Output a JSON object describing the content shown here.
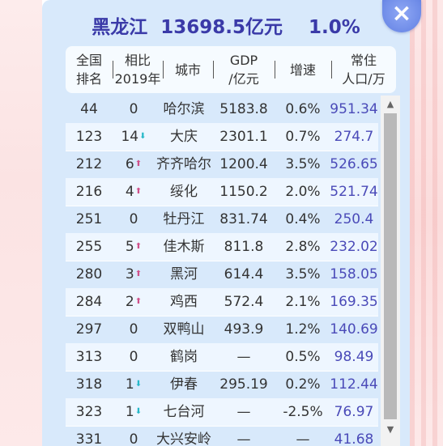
{
  "colors": {
    "title": "#3a3aa8",
    "panel": "#d8e9fb",
    "population": "#4a4ab8",
    "arrow_up": "#d0508a",
    "arrow_down": "#26b8c8",
    "close_button": "#7090e8"
  },
  "title": "黑龙江  13698.5亿元    1.0%",
  "close_icon": "×",
  "header": {
    "rank": [
      "全国",
      "排名"
    ],
    "comparison": [
      "相比",
      "2019年"
    ],
    "city": "城市",
    "gdp": [
      "GDP",
      "/亿元"
    ],
    "growth": "增速",
    "population": [
      "常住",
      "人口/万"
    ]
  },
  "rows": [
    {
      "rank": "44",
      "change": "0",
      "arrow": "",
      "city": "哈尔滨",
      "gdp": "5183.8",
      "growth": "0.6%",
      "population": "951.34"
    },
    {
      "rank": "123",
      "change": "14",
      "arrow": "down",
      "city": "大庆",
      "gdp": "2301.1",
      "growth": "0.7%",
      "population": "274.7"
    },
    {
      "rank": "212",
      "change": "6",
      "arrow": "up",
      "city": "齐齐哈尔",
      "gdp": "1200.4",
      "growth": "3.5%",
      "population": "526.65"
    },
    {
      "rank": "216",
      "change": "4",
      "arrow": "up",
      "city": "绥化",
      "gdp": "1150.2",
      "growth": "2.0%",
      "population": "521.74"
    },
    {
      "rank": "251",
      "change": "0",
      "arrow": "",
      "city": "牡丹江",
      "gdp": "831.74",
      "growth": "0.4%",
      "population": "250.4"
    },
    {
      "rank": "255",
      "change": "5",
      "arrow": "up",
      "city": "佳木斯",
      "gdp": "811.8",
      "growth": "2.8%",
      "population": "232.02"
    },
    {
      "rank": "280",
      "change": "3",
      "arrow": "up",
      "city": "黑河",
      "gdp": "614.4",
      "growth": "3.5%",
      "population": "158.05"
    },
    {
      "rank": "284",
      "change": "2",
      "arrow": "up",
      "city": "鸡西",
      "gdp": "572.4",
      "growth": "2.1%",
      "population": "169.35"
    },
    {
      "rank": "297",
      "change": "0",
      "arrow": "",
      "city": "双鸭山",
      "gdp": "493.9",
      "growth": "1.2%",
      "population": "140.69"
    },
    {
      "rank": "313",
      "change": "0",
      "arrow": "",
      "city": "鹤岗",
      "gdp": "—",
      "growth": "0.5%",
      "population": "98.49"
    },
    {
      "rank": "318",
      "change": "1",
      "arrow": "down",
      "city": "伊春",
      "gdp": "295.19",
      "growth": "0.2%",
      "population": "112.44"
    },
    {
      "rank": "323",
      "change": "1",
      "arrow": "down",
      "city": "七台河",
      "gdp": "—",
      "growth": "-2.5%",
      "population": "76.97"
    },
    {
      "rank": "331",
      "change": "0",
      "arrow": "",
      "city": "大兴安岭",
      "gdp": "—",
      "growth": "—",
      "population": "41.68"
    }
  ],
  "scrollbar": {
    "up_icon": "▲",
    "down_icon": "▼"
  }
}
